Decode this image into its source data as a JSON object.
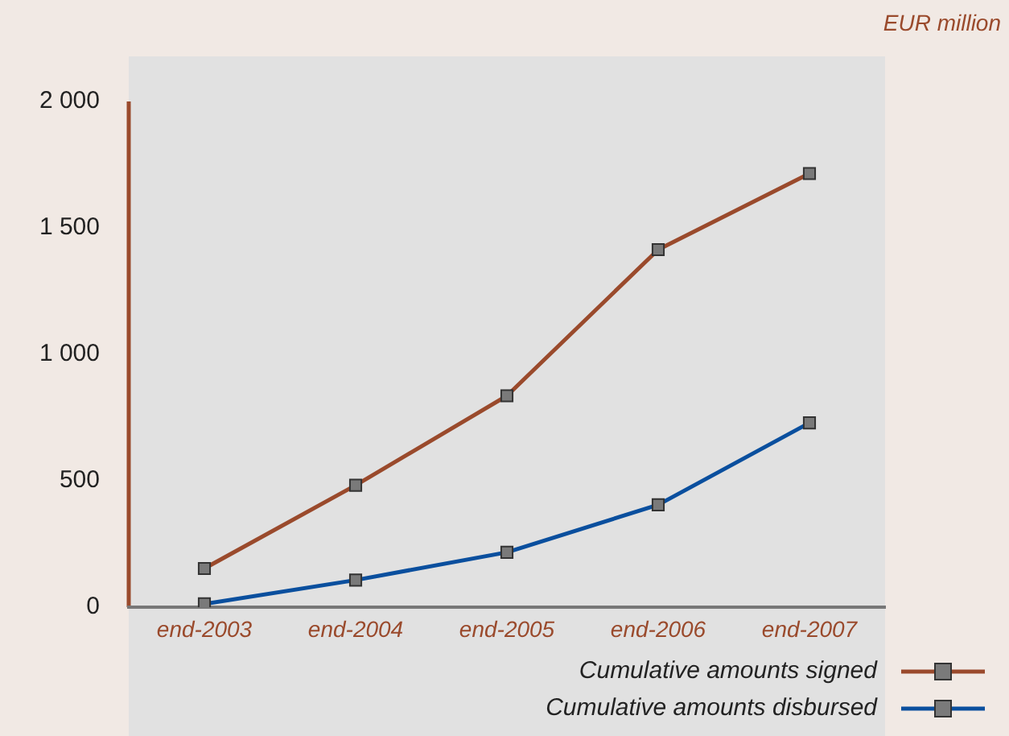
{
  "chart_data": {
    "type": "line",
    "ylabel": "EUR million",
    "categories": [
      "end-2003",
      "end-2004",
      "end-2005",
      "end-2006",
      "end-2007"
    ],
    "series": [
      {
        "name": "Cumulative amounts signed",
        "color": "#9a4a2c",
        "values": [
          153,
          482,
          836,
          1414,
          1715
        ]
      },
      {
        "name": "Cumulative amounts disbursed",
        "color": "#0a4f9e",
        "values": [
          13,
          107,
          217,
          405,
          729
        ]
      }
    ],
    "ylim": [
      0,
      2000
    ],
    "yticks": [
      0,
      {
        "value": 500,
        "label": "500"
      },
      {
        "value": 1000,
        "label": "1 000"
      },
      {
        "value": 1500,
        "label": "1 500"
      },
      {
        "value": 2000,
        "label": "2 000"
      }
    ],
    "grid": false,
    "legend": "bottom right",
    "marker": "square",
    "line_style": "solid"
  }
}
